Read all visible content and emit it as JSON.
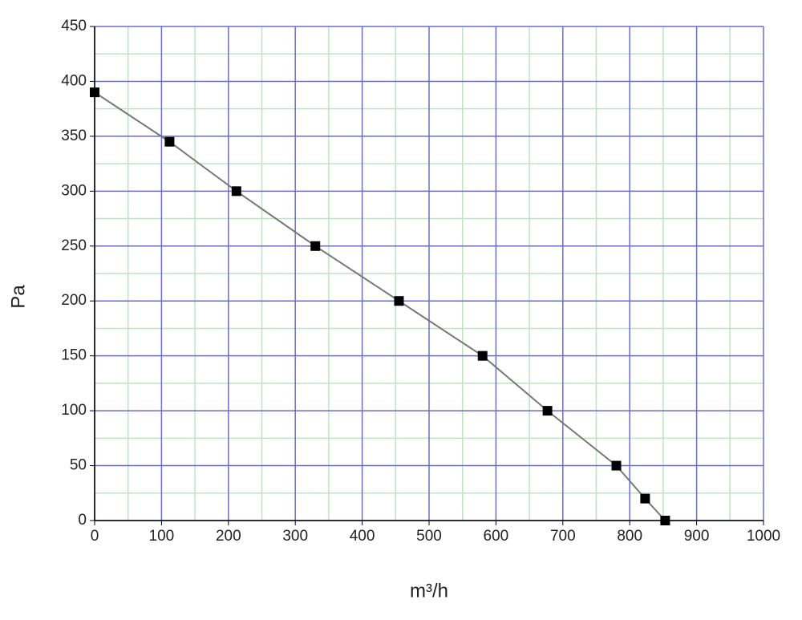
{
  "chart_data": {
    "type": "line",
    "x_label": "m³/h",
    "y_label": "Pa",
    "x": [
      0,
      112,
      212,
      330,
      455,
      580,
      677,
      780,
      823,
      853
    ],
    "series": [
      {
        "name": "Pa",
        "color": "#777777",
        "marker_color": "#000000",
        "values": [
          390,
          345,
          300,
          250,
          200,
          150,
          100,
          50,
          20,
          0
        ]
      }
    ],
    "xlim": [
      0,
      1000
    ],
    "xticks": [
      0,
      100,
      200,
      300,
      400,
      500,
      600,
      700,
      800,
      900,
      1000
    ],
    "xminorticks": [
      50,
      150,
      250,
      350,
      450,
      550,
      650,
      750,
      850,
      950
    ],
    "ylim": [
      0,
      450
    ],
    "yticks": [
      0,
      50,
      100,
      150,
      200,
      250,
      300,
      350,
      400,
      450
    ],
    "yminorticks": [
      25,
      75,
      125,
      175,
      225,
      275,
      325,
      375,
      425
    ],
    "grid": true,
    "grid_color": "#6b6bcf",
    "minor_grid_color": "#bfe3bf"
  }
}
